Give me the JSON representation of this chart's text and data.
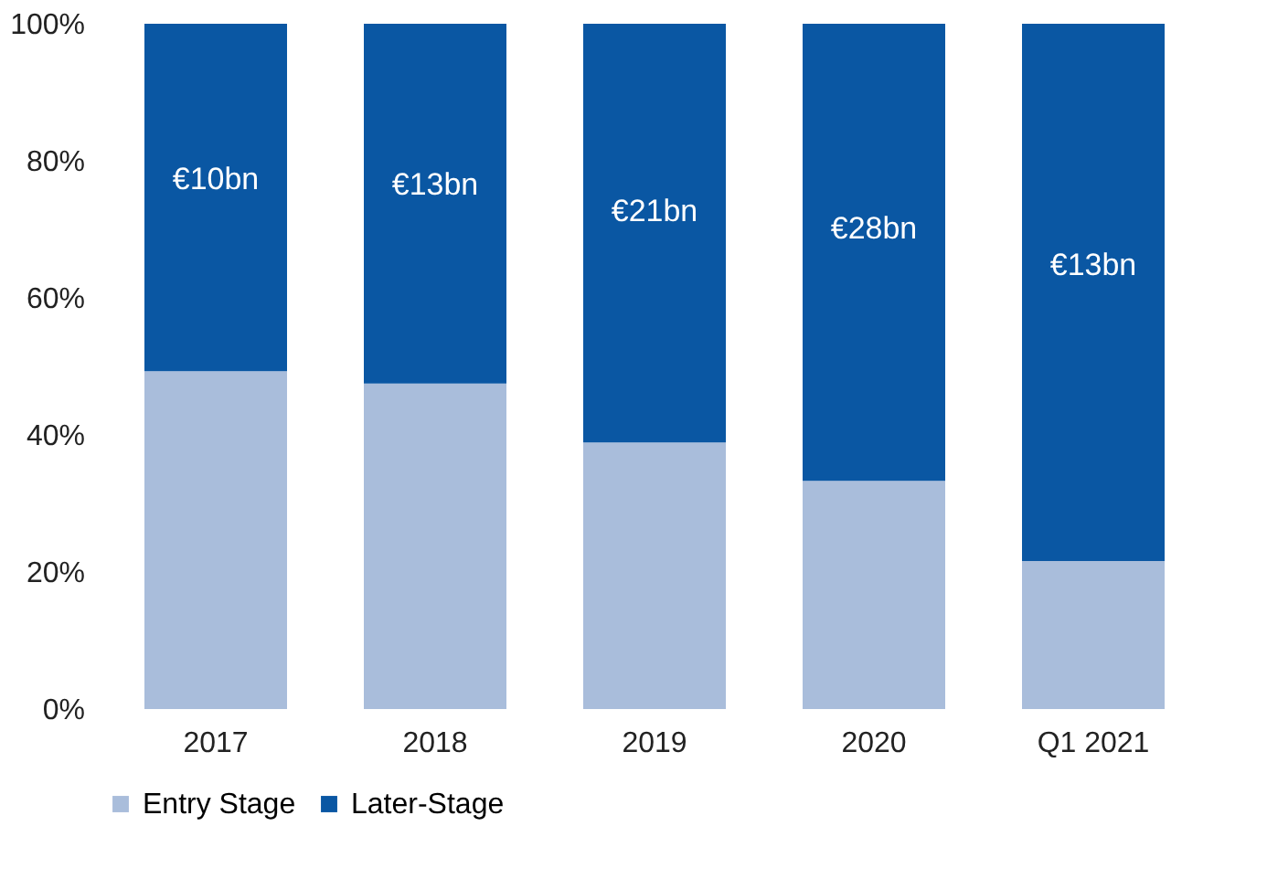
{
  "chart_data": {
    "type": "bar",
    "stacked": true,
    "categories": [
      "2017",
      "2018",
      "2019",
      "2020",
      "Q1 2021"
    ],
    "series": [
      {
        "name": "Entry Stage",
        "color": "#a9bddb",
        "values": [
          49.3,
          47.5,
          38.9,
          33.3,
          21.6
        ]
      },
      {
        "name": "Later-Stage",
        "color": "#0a57a3",
        "values": [
          50.7,
          52.5,
          61.1,
          66.7,
          78.4
        ]
      }
    ],
    "annotations": [
      "€10bn",
      "€13bn",
      "€21bn",
      "€28bn",
      "€13bn"
    ],
    "ylim": [
      0,
      100
    ],
    "yticks": [
      {
        "value": 0,
        "label": "0%"
      },
      {
        "value": 20,
        "label": "20%"
      },
      {
        "value": 40,
        "label": "40%"
      },
      {
        "value": 60,
        "label": "60%"
      },
      {
        "value": 80,
        "label": "80%"
      },
      {
        "value": 100,
        "label": "100%"
      }
    ],
    "grid": false,
    "legend": "bottom"
  }
}
